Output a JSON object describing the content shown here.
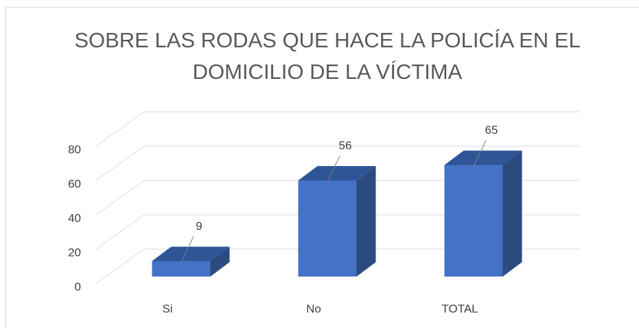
{
  "chart_data": {
    "type": "bar3d",
    "title": "SOBRE LAS RODAS QUE HACE LA POLICÍA EN EL DOMICILIO DE LA VÍCTIMA",
    "categories": [
      "Si",
      "No",
      "TOTAL"
    ],
    "values": [
      9,
      56,
      65
    ],
    "color": "#4472c4",
    "ylim": [
      0,
      80
    ],
    "yticks": [
      0,
      20,
      40,
      60,
      80
    ],
    "grid": true
  }
}
